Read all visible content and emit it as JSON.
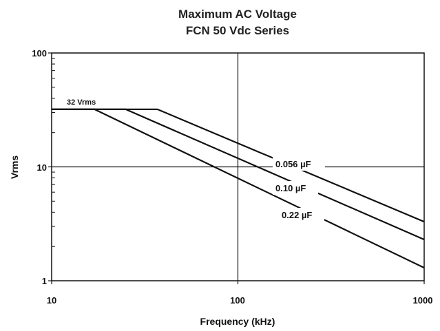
{
  "chart_data": {
    "type": "line",
    "title": "Maximum AC Voltage",
    "subtitle": "FCN 50 Vdc Series",
    "xlabel": "Frequency (kHz)",
    "ylabel": "Vrms",
    "x_scale": "log",
    "y_scale": "log",
    "xlim": [
      10,
      1000
    ],
    "ylim": [
      1,
      100
    ],
    "x_ticks": [
      "10",
      "100",
      "1000"
    ],
    "y_ticks": [
      "100",
      "10",
      "1"
    ],
    "grid": "major only (x = 100, y = 10)",
    "annotation": "32 Vrms",
    "colors": {
      "line": "#111111",
      "background": "#ffffff"
    },
    "series": [
      {
        "name": "0.056 µF",
        "x": [
          10,
          37,
          1000
        ],
        "y": [
          32,
          32,
          3.3
        ]
      },
      {
        "name": "0.10 µF",
        "x": [
          10,
          25,
          1000
        ],
        "y": [
          32,
          32,
          2.3
        ]
      },
      {
        "name": "0.22 µF",
        "x": [
          10,
          17,
          1000
        ],
        "y": [
          32,
          32,
          1.3
        ]
      }
    ]
  }
}
